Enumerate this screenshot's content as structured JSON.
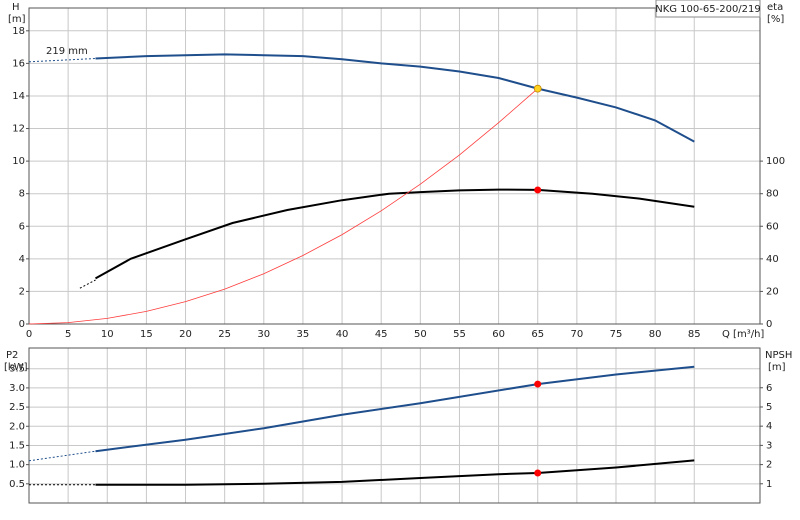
{
  "chart_data": [
    {
      "type": "line",
      "title": "NKG 100-65-200/219",
      "xlabel": "Q [m³/h]",
      "ylabel": [
        "H",
        "[m]"
      ],
      "y2label": [
        "eta",
        "[%]"
      ],
      "annotation": "219 mm",
      "xlim": [
        0,
        93.4
      ],
      "xticks": [
        0,
        5,
        10,
        15,
        20,
        25,
        30,
        35,
        40,
        45,
        50,
        55,
        60,
        65,
        70,
        75,
        80,
        85
      ],
      "ylim": [
        0,
        19.4
      ],
      "yticks": [
        0,
        2,
        4,
        6,
        8,
        10,
        12,
        14,
        16,
        18
      ],
      "y2lim": [
        0,
        194
      ],
      "y2ticks": [
        0,
        20,
        40,
        60,
        80,
        100
      ],
      "grid": true,
      "series": [
        {
          "color": "#1f4e8c",
          "style": "dashed",
          "x": [
            0,
            8.5
          ],
          "values": [
            16.1,
            16.3
          ]
        },
        {
          "color": "#1f4e8c",
          "style": "solid",
          "x": [
            8.5,
            15,
            20,
            25,
            30,
            35,
            40,
            45,
            50,
            55,
            60,
            65,
            70,
            75,
            80,
            85
          ],
          "values": [
            16.3,
            16.45,
            16.5,
            16.55,
            16.5,
            16.45,
            16.25,
            16.0,
            15.8,
            15.5,
            15.1,
            14.45,
            13.9,
            13.3,
            12.5,
            11.2
          ]
        },
        {
          "color": "#000000",
          "style": "dashed",
          "axis": "y2",
          "x": [
            6.5,
            8.5
          ],
          "values": [
            22,
            27
          ]
        },
        {
          "color": "#000000",
          "style": "solid",
          "axis": "y2",
          "x": [
            8.5,
            13,
            20,
            26,
            33,
            40,
            46,
            50,
            55,
            60,
            65,
            72,
            78,
            85
          ],
          "values": [
            28,
            40,
            52,
            62,
            70,
            76,
            80,
            81,
            82,
            82.5,
            82.3,
            80,
            77,
            72
          ]
        },
        {
          "color": "#ff3b3b",
          "style": "thin",
          "x": [
            0,
            5,
            10,
            15,
            20,
            25,
            30,
            35,
            40,
            45,
            50,
            55,
            60,
            65
          ],
          "values": [
            0,
            0.086,
            0.343,
            0.772,
            1.373,
            2.145,
            3.089,
            4.204,
            5.491,
            6.95,
            8.58,
            10.38,
            12.36,
            14.45
          ]
        }
      ],
      "points": [
        {
          "x": 65,
          "y": 14.45,
          "color": "#ffd21f"
        },
        {
          "x": 65,
          "y": 82.3,
          "axis": "y2",
          "color": "#ff0000"
        }
      ]
    },
    {
      "type": "line",
      "ylabel": [
        "P2",
        "[kW]"
      ],
      "y2label": [
        "NPSH",
        "[m]"
      ],
      "xlim": [
        0,
        93.4
      ],
      "ylim": [
        0,
        4.04
      ],
      "yticks": [
        0.5,
        {
          "value": 1,
          "label": "1.0"
        },
        1.5,
        {
          "value": 2,
          "label": "2.0"
        },
        2.5,
        {
          "value": 3,
          "label": "3.0"
        },
        3.5
      ],
      "y2lim": [
        0,
        8.07
      ],
      "y2ticks": [
        1,
        2,
        3,
        4,
        5,
        6
      ],
      "grid": true,
      "series": [
        {
          "color": "#1f4e8c",
          "style": "dashed",
          "x": [
            0,
            8.5
          ],
          "values": [
            1.1,
            1.35
          ]
        },
        {
          "color": "#1f4e8c",
          "style": "solid",
          "x": [
            8.5,
            20,
            30,
            40,
            50,
            65,
            75,
            85
          ],
          "values": [
            1.35,
            1.65,
            1.95,
            2.3,
            2.6,
            3.1,
            3.35,
            3.55
          ]
        },
        {
          "color": "#000000",
          "style": "dashed",
          "axis": "y2",
          "x": [
            0,
            8.5
          ],
          "values": [
            0.95,
            0.95
          ]
        },
        {
          "color": "#000000",
          "style": "solid",
          "axis": "y2",
          "x": [
            8.5,
            20,
            30,
            40,
            50,
            60,
            65,
            75,
            85
          ],
          "values": [
            0.95,
            0.95,
            1.0,
            1.1,
            1.3,
            1.5,
            1.56,
            1.85,
            2.22
          ]
        }
      ],
      "points": [
        {
          "x": 65,
          "y": 3.1,
          "color": "#ff0000"
        },
        {
          "x": 65,
          "y": 1.56,
          "axis": "y2",
          "color": "#ff0000"
        }
      ]
    }
  ]
}
